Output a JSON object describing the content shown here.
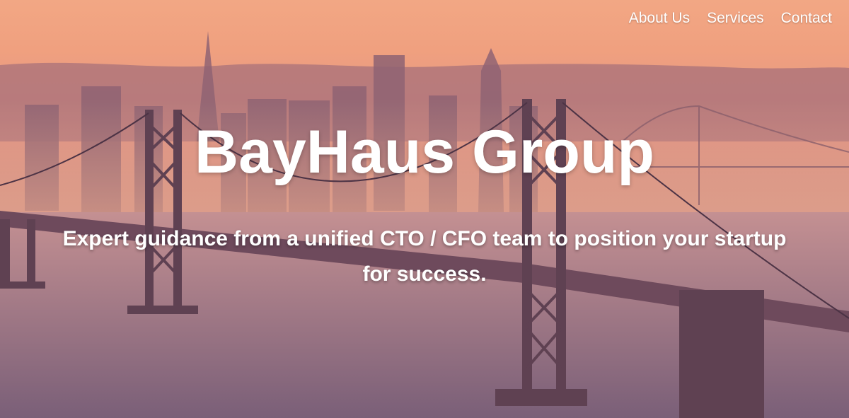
{
  "nav": {
    "items": [
      {
        "label": "About Us"
      },
      {
        "label": "Services"
      },
      {
        "label": "Contact"
      }
    ]
  },
  "hero": {
    "title": "BayHaus Group",
    "subtitle": "Expert guidance from a unified CTO / CFO team to position your startup for success."
  },
  "colors": {
    "sky_top": "#f2a784",
    "water": "#8c6a80",
    "bridge": "#6e4a5c",
    "text": "#ffffff"
  }
}
